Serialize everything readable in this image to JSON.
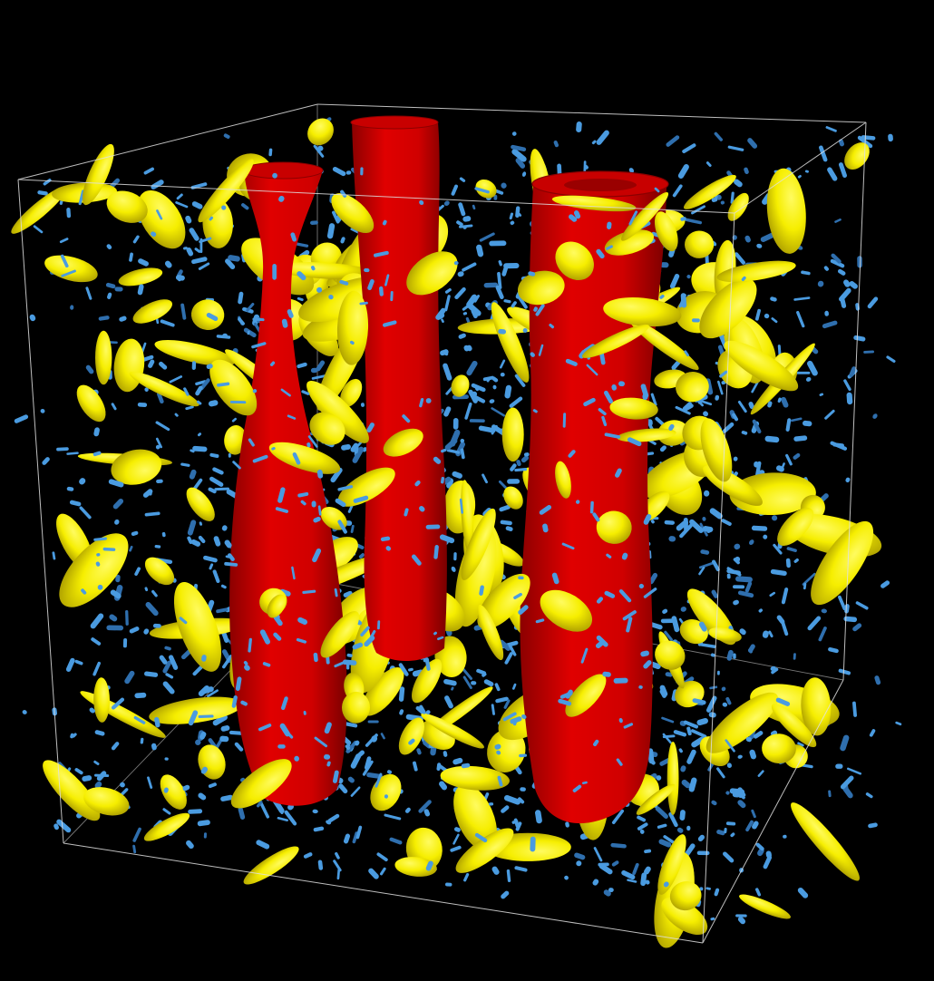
{
  "colors": {
    "background": "#000000",
    "domain_box": "#d8d8d8",
    "primary_columns": "#e00000",
    "primary_columns_shade": "#8c0000",
    "secondary_blobs": "#f6ee00",
    "secondary_blobs_shade": "#b8a800",
    "small_filaments": "#4a9be0",
    "small_filaments_shade": "#2f6fae"
  },
  "layers": [
    {
      "id": "small-filaments",
      "color": "small_filaments"
    },
    {
      "id": "secondary-blobs",
      "color": "secondary_blobs"
    },
    {
      "id": "primary-columns",
      "color": "primary_columns"
    }
  ],
  "view": "perspective-cube"
}
